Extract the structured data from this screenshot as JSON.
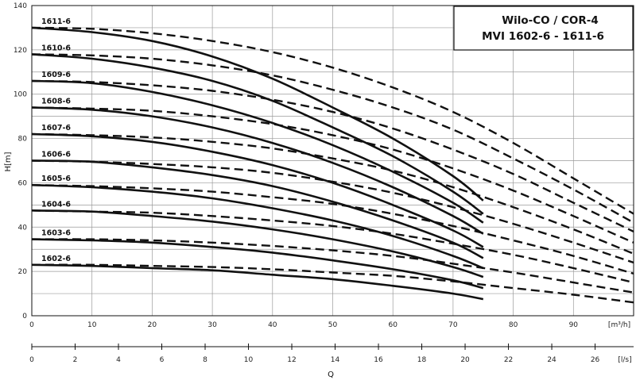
{
  "chart_data": {
    "type": "line",
    "title": [
      "Wilo-CO / COR-4",
      "MVI 1602-6 - 1611-6"
    ],
    "xlabel": "Q",
    "ylabel": "H[m]",
    "x_units": "m³/h",
    "x2_units": "l/s",
    "xlim": [
      0,
      100
    ],
    "ylim": [
      0,
      140
    ],
    "x_ticks": [
      "0",
      "10",
      "20",
      "30",
      "40",
      "50",
      "60",
      "70",
      "80",
      "90"
    ],
    "y_ticks": [
      "0",
      "20",
      "40",
      "60",
      "80",
      "100",
      "120",
      "140"
    ],
    "x2_ticks": [
      "0",
      "2",
      "4",
      "6",
      "8",
      "10",
      "12",
      "14",
      "16",
      "18",
      "20",
      "22",
      "24",
      "26"
    ],
    "grid": true,
    "solid_end_q": 75,
    "dashed_end_q": 100,
    "series": [
      {
        "name": "1611-6",
        "solid": [
          [
            0,
            130
          ],
          [
            10,
            128
          ],
          [
            20,
            124
          ],
          [
            30,
            117
          ],
          [
            40,
            107
          ],
          [
            50,
            94
          ],
          [
            60,
            80
          ],
          [
            70,
            63
          ],
          [
            75,
            52
          ]
        ],
        "dashed": [
          [
            0,
            130
          ],
          [
            10,
            129.5
          ],
          [
            20,
            127.5
          ],
          [
            30,
            124
          ],
          [
            40,
            119
          ],
          [
            50,
            112
          ],
          [
            60,
            103
          ],
          [
            70,
            92
          ],
          [
            80,
            78
          ],
          [
            90,
            62
          ],
          [
            100,
            46
          ]
        ]
      },
      {
        "name": "1610-6",
        "solid": [
          [
            0,
            118
          ],
          [
            10,
            116
          ],
          [
            20,
            112
          ],
          [
            30,
            106
          ],
          [
            40,
            97
          ],
          [
            50,
            85
          ],
          [
            60,
            72
          ],
          [
            70,
            56
          ],
          [
            75,
            46
          ]
        ],
        "dashed": [
          [
            0,
            118
          ],
          [
            10,
            117.5
          ],
          [
            20,
            116
          ],
          [
            30,
            113
          ],
          [
            40,
            108.5
          ],
          [
            50,
            102
          ],
          [
            60,
            94
          ],
          [
            70,
            84
          ],
          [
            80,
            71
          ],
          [
            90,
            57
          ],
          [
            100,
            42
          ]
        ]
      },
      {
        "name": "1609-6",
        "solid": [
          [
            0,
            106
          ],
          [
            10,
            105
          ],
          [
            20,
            101
          ],
          [
            30,
            95
          ],
          [
            40,
            87
          ],
          [
            50,
            77
          ],
          [
            60,
            65
          ],
          [
            70,
            51
          ],
          [
            75,
            42
          ]
        ],
        "dashed": [
          [
            0,
            106
          ],
          [
            10,
            105.5
          ],
          [
            20,
            104
          ],
          [
            30,
            101.5
          ],
          [
            40,
            97.5
          ],
          [
            50,
            92
          ],
          [
            60,
            84.5
          ],
          [
            70,
            75
          ],
          [
            80,
            64
          ],
          [
            90,
            51
          ],
          [
            100,
            38
          ]
        ]
      },
      {
        "name": "1608-6",
        "solid": [
          [
            0,
            94
          ],
          [
            10,
            93
          ],
          [
            20,
            90
          ],
          [
            30,
            85
          ],
          [
            40,
            78
          ],
          [
            50,
            69
          ],
          [
            60,
            58
          ],
          [
            70,
            45
          ],
          [
            75,
            37
          ]
        ],
        "dashed": [
          [
            0,
            94
          ],
          [
            10,
            93.5
          ],
          [
            20,
            92.5
          ],
          [
            30,
            90
          ],
          [
            40,
            86.5
          ],
          [
            50,
            81.5
          ],
          [
            60,
            75
          ],
          [
            70,
            66.5
          ],
          [
            80,
            56.5
          ],
          [
            90,
            45
          ],
          [
            100,
            33
          ]
        ]
      },
      {
        "name": "1607-6",
        "solid": [
          [
            0,
            82
          ],
          [
            10,
            81
          ],
          [
            20,
            78.5
          ],
          [
            30,
            74
          ],
          [
            40,
            68
          ],
          [
            50,
            60
          ],
          [
            60,
            50
          ],
          [
            70,
            38.5
          ],
          [
            75,
            31
          ]
        ],
        "dashed": [
          [
            0,
            82
          ],
          [
            10,
            81.5
          ],
          [
            20,
            80.5
          ],
          [
            30,
            78.5
          ],
          [
            40,
            75.5
          ],
          [
            50,
            71
          ],
          [
            60,
            65.5
          ],
          [
            70,
            58
          ],
          [
            80,
            49
          ],
          [
            90,
            39
          ],
          [
            100,
            28
          ]
        ]
      },
      {
        "name": "1606-6",
        "solid": [
          [
            0,
            70
          ],
          [
            10,
            69.5
          ],
          [
            20,
            67
          ],
          [
            30,
            63.5
          ],
          [
            40,
            58.5
          ],
          [
            50,
            51.5
          ],
          [
            60,
            43
          ],
          [
            70,
            33
          ],
          [
            75,
            26
          ]
        ],
        "dashed": [
          [
            0,
            70
          ],
          [
            10,
            69.5
          ],
          [
            20,
            68.5
          ],
          [
            30,
            67
          ],
          [
            40,
            64.5
          ],
          [
            50,
            60.5
          ],
          [
            60,
            55.5
          ],
          [
            70,
            49
          ],
          [
            80,
            41.5
          ],
          [
            90,
            33
          ],
          [
            100,
            24
          ]
        ]
      },
      {
        "name": "1605-6",
        "solid": [
          [
            0,
            59
          ],
          [
            10,
            58
          ],
          [
            20,
            56
          ],
          [
            30,
            53
          ],
          [
            40,
            48.5
          ],
          [
            50,
            43
          ],
          [
            60,
            36
          ],
          [
            70,
            27
          ],
          [
            75,
            21.5
          ]
        ],
        "dashed": [
          [
            0,
            59
          ],
          [
            10,
            58.5
          ],
          [
            20,
            57.5
          ],
          [
            30,
            56
          ],
          [
            40,
            53.5
          ],
          [
            50,
            50.5
          ],
          [
            60,
            46
          ],
          [
            70,
            40.5
          ],
          [
            80,
            34
          ],
          [
            90,
            27
          ],
          [
            100,
            19
          ]
        ]
      },
      {
        "name": "1604-6",
        "solid": [
          [
            0,
            47.5
          ],
          [
            10,
            47
          ],
          [
            20,
            45
          ],
          [
            30,
            42.5
          ],
          [
            40,
            39
          ],
          [
            50,
            34.5
          ],
          [
            60,
            29
          ],
          [
            70,
            22
          ],
          [
            75,
            17.5
          ]
        ],
        "dashed": [
          [
            0,
            47.5
          ],
          [
            10,
            47
          ],
          [
            20,
            46.5
          ],
          [
            30,
            45
          ],
          [
            40,
            43
          ],
          [
            50,
            40.5
          ],
          [
            60,
            37
          ],
          [
            70,
            32.5
          ],
          [
            80,
            27.5
          ],
          [
            90,
            21.5
          ],
          [
            100,
            15
          ]
        ]
      },
      {
        "name": "1603-6",
        "solid": [
          [
            0,
            34.5
          ],
          [
            10,
            34
          ],
          [
            20,
            33
          ],
          [
            30,
            31
          ],
          [
            40,
            28.5
          ],
          [
            50,
            25
          ],
          [
            60,
            21
          ],
          [
            70,
            16
          ],
          [
            75,
            12.5
          ]
        ],
        "dashed": [
          [
            0,
            34.5
          ],
          [
            10,
            34.5
          ],
          [
            20,
            34
          ],
          [
            30,
            33
          ],
          [
            40,
            31.5
          ],
          [
            50,
            29.5
          ],
          [
            60,
            27
          ],
          [
            70,
            23.5
          ],
          [
            80,
            19.5
          ],
          [
            90,
            15
          ],
          [
            100,
            10.5
          ]
        ]
      },
      {
        "name": "1602-6",
        "solid": [
          [
            0,
            23
          ],
          [
            10,
            22.5
          ],
          [
            20,
            21.5
          ],
          [
            30,
            20.5
          ],
          [
            40,
            18.5
          ],
          [
            50,
            16.5
          ],
          [
            60,
            13.5
          ],
          [
            70,
            10
          ],
          [
            75,
            7.5
          ]
        ],
        "dashed": [
          [
            0,
            23
          ],
          [
            10,
            23
          ],
          [
            20,
            22.5
          ],
          [
            30,
            22
          ],
          [
            40,
            21
          ],
          [
            50,
            19.5
          ],
          [
            60,
            18
          ],
          [
            70,
            15.5
          ],
          [
            80,
            12.5
          ],
          [
            90,
            9.5
          ],
          [
            100,
            6
          ]
        ]
      }
    ]
  }
}
